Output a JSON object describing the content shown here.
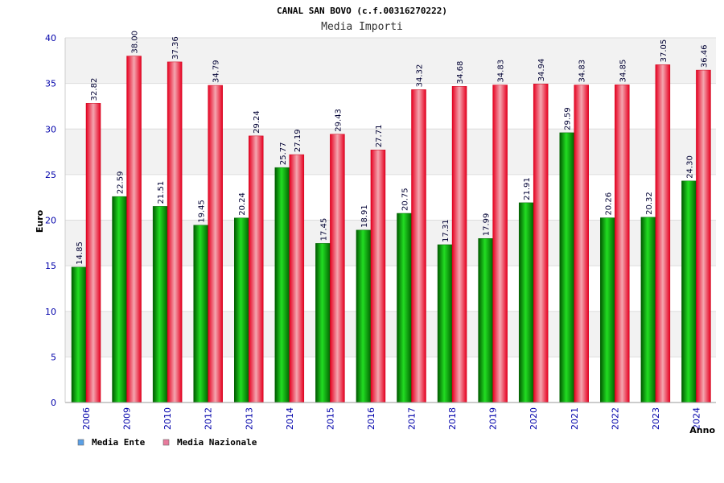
{
  "chart_data": {
    "type": "bar",
    "title": "CANAL SAN BOVO (c.f.00316270222)",
    "subtitle": "Media Importi",
    "xlabel": "Anno",
    "ylabel": "Euro",
    "ylim": [
      0,
      40
    ],
    "yticks": [
      "0",
      "5",
      "10",
      "15",
      "20",
      "25",
      "30",
      "35",
      "40"
    ],
    "categories": [
      "2006",
      "2009",
      "2010",
      "2012",
      "2013",
      "2014",
      "2015",
      "2016",
      "2017",
      "2018",
      "2019",
      "2020",
      "2021",
      "2022",
      "2023",
      "2024"
    ],
    "series": [
      {
        "name": "Media Ente",
        "values": [
          14.85,
          22.59,
          21.51,
          19.45,
          20.24,
          25.77,
          17.45,
          18.91,
          20.75,
          17.31,
          17.99,
          21.91,
          29.59,
          20.26,
          20.32,
          24.3
        ],
        "labels": [
          "14.85",
          "22.59",
          "21.51",
          "19.45",
          "20.24",
          "25.77",
          "17.45",
          "18.91",
          "20.75",
          "17.31",
          "17.99",
          "21.91",
          "29.59",
          "20.26",
          "20.32",
          "24.30"
        ],
        "color": "#00a000"
      },
      {
        "name": "Media Nazionale",
        "values": [
          32.82,
          38.0,
          37.36,
          34.79,
          29.24,
          27.19,
          29.43,
          27.71,
          34.32,
          34.68,
          34.83,
          34.94,
          34.83,
          34.85,
          37.05,
          36.46
        ],
        "labels": [
          "32.82",
          "38.00",
          "37.36",
          "34.79",
          "29.24",
          "27.19",
          "29.43",
          "27.71",
          "34.32",
          "34.68",
          "34.83",
          "34.94",
          "34.83",
          "34.85",
          "37.05",
          "36.46"
        ],
        "color": "#e8001c"
      }
    ],
    "legend": [
      {
        "label": "Media Ente",
        "color": "#5aa0e6"
      },
      {
        "label": "Media Nazionale",
        "color": "#e87a9c"
      }
    ],
    "legend_position": "bottom-left",
    "grid": true
  }
}
